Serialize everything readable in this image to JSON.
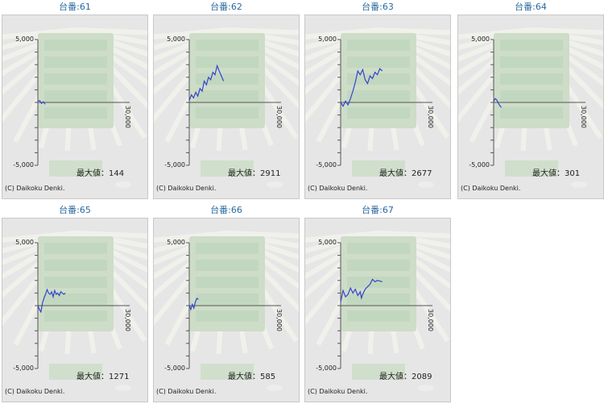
{
  "copyright": "(C) Daikoku Denki.",
  "max_label": "最大値：",
  "line_color": "#3344cc",
  "chart_data": [
    {
      "type": "line",
      "title": "台番:61",
      "ylim": [
        -5000,
        5000
      ],
      "xlim": [
        0,
        30000
      ],
      "yticks": [
        "5,000",
        "-5,000"
      ],
      "xtick": "30,000",
      "max_value": "144",
      "series": [
        {
          "x": [
            0,
            600,
            1200,
            1800,
            2400
          ],
          "y": [
            100,
            144,
            -80,
            50,
            -150
          ]
        }
      ]
    },
    {
      "type": "line",
      "title": "台番:62",
      "ylim": [
        -5000,
        5000
      ],
      "xlim": [
        0,
        30000
      ],
      "yticks": [
        "5,000",
        "-5,000"
      ],
      "xtick": "30,000",
      "max_value": "2911",
      "series": [
        {
          "x": [
            0,
            700,
            1400,
            2100,
            2800,
            3500,
            4200,
            4900,
            5600,
            6300,
            7000,
            7700,
            8400,
            9100,
            9800,
            10500,
            11200
          ],
          "y": [
            150,
            600,
            350,
            800,
            500,
            1100,
            900,
            1700,
            1400,
            2000,
            1800,
            2400,
            2200,
            2911,
            2500,
            2100,
            1700
          ]
        }
      ]
    },
    {
      "type": "line",
      "title": "台番:63",
      "ylim": [
        -5000,
        5000
      ],
      "xlim": [
        0,
        30000
      ],
      "yticks": [
        "5,000",
        "-5,000"
      ],
      "xtick": "30,000",
      "max_value": "2677",
      "series": [
        {
          "x": [
            0,
            800,
            1600,
            2400,
            3200,
            4000,
            4800,
            5600,
            6400,
            7200,
            8000,
            8800,
            9600,
            10400,
            11200,
            12000,
            12800,
            13600
          ],
          "y": [
            0,
            -300,
            100,
            -200,
            300,
            900,
            1600,
            2500,
            2200,
            2600,
            1800,
            1500,
            2100,
            1900,
            2400,
            2200,
            2677,
            2500
          ]
        }
      ]
    },
    {
      "type": "line",
      "title": "台番:64",
      "ylim": [
        -5000,
        5000
      ],
      "xlim": [
        0,
        30000
      ],
      "yticks": [
        "5,000",
        "-5,000"
      ],
      "xtick": "30,000",
      "max_value": "301",
      "series": [
        {
          "x": [
            0,
            500,
            1000,
            1500,
            2000,
            2500
          ],
          "y": [
            100,
            301,
            200,
            -50,
            -250,
            -400
          ]
        }
      ]
    },
    {
      "type": "line",
      "title": "台番:65",
      "ylim": [
        -5000,
        5000
      ],
      "xlim": [
        0,
        30000
      ],
      "yticks": [
        "5,000",
        "-5,000"
      ],
      "xtick": "30,000",
      "max_value": "1271",
      "series": [
        {
          "x": [
            0,
            500,
            1000,
            1500,
            2000,
            2500,
            3000,
            3500,
            4000,
            4500,
            5000,
            5500,
            6000,
            6500,
            7000,
            7500,
            8000,
            8500,
            9000
          ],
          "y": [
            0,
            -300,
            -500,
            200,
            600,
            900,
            1271,
            1000,
            900,
            1100,
            700,
            1200,
            900,
            1000,
            800,
            1100,
            1000,
            900,
            1000
          ]
        }
      ]
    },
    {
      "type": "line",
      "title": "台番:66",
      "ylim": [
        -5000,
        5000
      ],
      "xlim": [
        0,
        30000
      ],
      "yticks": [
        "5,000",
        "-5,000"
      ],
      "xtick": "30,000",
      "max_value": "585",
      "series": [
        {
          "x": [
            0,
            500,
            1000,
            1500,
            2000,
            2500,
            3000
          ],
          "y": [
            0,
            -300,
            100,
            -200,
            300,
            585,
            500
          ]
        }
      ]
    },
    {
      "type": "line",
      "title": "台番:67",
      "ylim": [
        -5000,
        5000
      ],
      "xlim": [
        0,
        30000
      ],
      "yticks": [
        "5,000",
        "-5,000"
      ],
      "xtick": "30,000",
      "max_value": "2089",
      "series": [
        {
          "x": [
            0,
            800,
            1600,
            2400,
            3200,
            4000,
            4800,
            5600,
            6400,
            6800,
            7200,
            8000,
            8800,
            9600,
            10400,
            11200,
            12000,
            12800,
            13600
          ],
          "y": [
            300,
            1200,
            700,
            900,
            1400,
            1000,
            1300,
            800,
            1100,
            600,
            900,
            1300,
            1500,
            1700,
            2089,
            1900,
            2000,
            1950,
            1900
          ]
        }
      ]
    }
  ]
}
